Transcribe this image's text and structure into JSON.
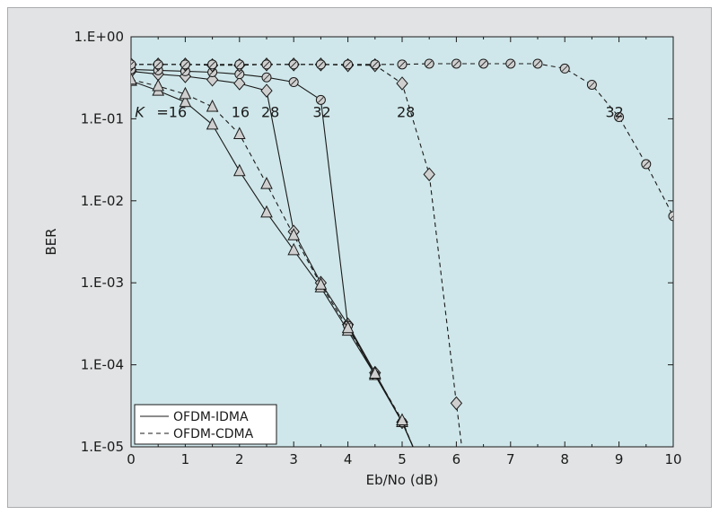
{
  "chart_data": {
    "type": "line",
    "title": "",
    "xlabel": "Eb/No (dB)",
    "ylabel": "BER",
    "xlim": [
      0,
      10
    ],
    "ylim": [
      1e-05,
      1
    ],
    "yscale": "log",
    "x_ticks": [
      "0",
      "1",
      "2",
      "3",
      "4",
      "5",
      "6",
      "7",
      "8",
      "9",
      "10"
    ],
    "y_ticks": [
      "1.E+00",
      "1.E-01",
      "1.E-02",
      "1.E-03",
      "1.E-04",
      "1.E-05"
    ],
    "grid": false,
    "legend_position": "bottom-left",
    "legend": [
      {
        "label": "OFDM-IDMA",
        "style": "solid"
      },
      {
        "label": "OFDM-CDMA",
        "style": "dashed"
      }
    ],
    "colors": {
      "plot_background": "#cfe7ea",
      "figure_background": "#e1e3e4",
      "line": "#1a1a1a",
      "marker_fill": "#cfcfcf"
    },
    "series": [
      {
        "group": "OFDM-IDMA",
        "K": 16,
        "marker": "triangle",
        "style": "solid",
        "x": [
          0,
          0.5,
          1,
          1.5,
          2,
          2.5,
          3,
          3.5,
          4,
          4.5,
          5,
          5.2
        ],
        "y": [
          0.29,
          0.22,
          0.16,
          0.085,
          0.023,
          0.0072,
          0.0025,
          0.00088,
          0.00026,
          7.5e-05,
          2e-05,
          1e-05
        ]
      },
      {
        "group": "OFDM-IDMA",
        "K": 28,
        "marker": "diamond",
        "style": "solid",
        "x": [
          0,
          0.5,
          1,
          1.5,
          2,
          2.5,
          3,
          3.5,
          4,
          4.5,
          5,
          5.2
        ],
        "y": [
          0.38,
          0.35,
          0.33,
          0.3,
          0.27,
          0.22,
          0.0042,
          0.001,
          0.00031,
          8e-05,
          2e-05,
          1e-05
        ]
      },
      {
        "group": "OFDM-IDMA",
        "K": 32,
        "marker": "circle",
        "style": "solid",
        "x": [
          0,
          0.5,
          1,
          1.5,
          2,
          2.5,
          3,
          3.5,
          4,
          4.5,
          5,
          5.2
        ],
        "y": [
          0.4,
          0.39,
          0.38,
          0.37,
          0.35,
          0.32,
          0.28,
          0.17,
          0.0003,
          7.5e-05,
          2e-05,
          1e-05
        ]
      },
      {
        "group": "OFDM-CDMA",
        "K": 16,
        "marker": "triangle",
        "style": "dashed",
        "x": [
          0,
          0.5,
          1,
          1.5,
          2,
          2.5,
          3,
          3.5,
          4,
          4.5,
          5,
          5.2
        ],
        "y": [
          0.3,
          0.25,
          0.2,
          0.14,
          0.065,
          0.016,
          0.0038,
          0.00095,
          0.00028,
          7.8e-05,
          2.1e-05,
          1e-05
        ]
      },
      {
        "group": "OFDM-CDMA",
        "K": 28,
        "marker": "diamond",
        "style": "dashed",
        "x": [
          0,
          0.5,
          1,
          1.5,
          2,
          2.5,
          3,
          3.5,
          4,
          4.5,
          5,
          5.5,
          6,
          6.1
        ],
        "y": [
          0.46,
          0.46,
          0.46,
          0.45,
          0.45,
          0.46,
          0.46,
          0.46,
          0.45,
          0.45,
          0.27,
          0.021,
          3.4e-05,
          1e-05
        ]
      },
      {
        "group": "OFDM-CDMA",
        "K": 32,
        "marker": "circle",
        "style": "dashed",
        "x": [
          0,
          0.5,
          1,
          1.5,
          2,
          2.5,
          3,
          3.5,
          4,
          4.5,
          5,
          5.5,
          6,
          6.5,
          7,
          7.5,
          8,
          8.5,
          9,
          9.5,
          10
        ],
        "y": [
          0.46,
          0.46,
          0.46,
          0.46,
          0.46,
          0.46,
          0.46,
          0.46,
          0.46,
          0.46,
          0.46,
          0.47,
          0.47,
          0.47,
          0.47,
          0.47,
          0.41,
          0.26,
          0.105,
          0.028,
          0.0065
        ]
      }
    ],
    "annotations": [
      {
        "text": "K",
        "italic": true,
        "x": 0.07,
        "y": 0.105
      },
      {
        "text": "=16",
        "x": 0.47,
        "y": 0.105
      },
      {
        "text": "16",
        "x": 1.85,
        "y": 0.105
      },
      {
        "text": "28",
        "x": 2.4,
        "y": 0.105
      },
      {
        "text": "32",
        "x": 3.35,
        "y": 0.105
      },
      {
        "text": "28",
        "x": 4.9,
        "y": 0.105
      },
      {
        "text": "32",
        "x": 8.75,
        "y": 0.105
      }
    ]
  }
}
